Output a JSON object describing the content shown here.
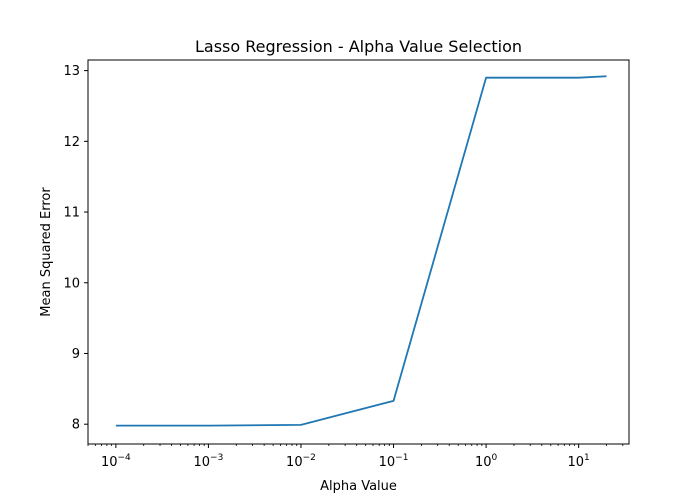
{
  "chart_data": {
    "type": "line",
    "title": "Lasso Regression - Alpha Value Selection",
    "xlabel": "Alpha Value",
    "ylabel": "Mean Squared Error",
    "xscale": "log",
    "xlim": [
      5e-05,
      35
    ],
    "ylim": [
      7.72,
      13.15
    ],
    "grid": false,
    "x_ticks": [
      {
        "value": 0.0001,
        "base": "10",
        "exp": "−4"
      },
      {
        "value": 0.001,
        "base": "10",
        "exp": "−3"
      },
      {
        "value": 0.01,
        "base": "10",
        "exp": "−2"
      },
      {
        "value": 0.1,
        "base": "10",
        "exp": "−1"
      },
      {
        "value": 1,
        "base": "10",
        "exp": "0"
      },
      {
        "value": 10,
        "base": "10",
        "exp": "1"
      }
    ],
    "y_ticks": [
      {
        "value": 8,
        "label": "8"
      },
      {
        "value": 9,
        "label": "9"
      },
      {
        "value": 10,
        "label": "10"
      },
      {
        "value": 11,
        "label": "11"
      },
      {
        "value": 12,
        "label": "12"
      },
      {
        "value": 13,
        "label": "13"
      }
    ],
    "series": [
      {
        "color": "#1f77b4",
        "x": [
          0.0001,
          0.001,
          0.01,
          0.1,
          1,
          10,
          20
        ],
        "y": [
          7.98,
          7.98,
          7.99,
          8.33,
          12.9,
          12.9,
          12.92
        ]
      }
    ]
  }
}
